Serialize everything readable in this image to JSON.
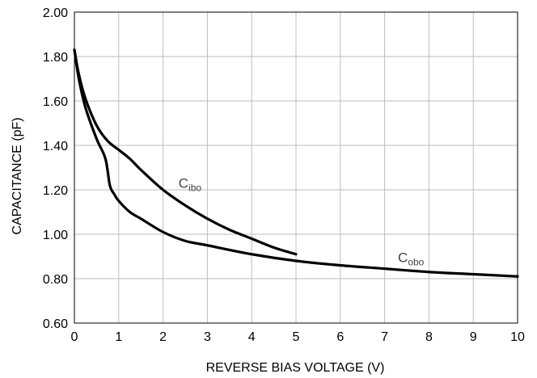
{
  "chart_data": {
    "type": "line",
    "xlabel": "REVERSE BIAS VOLTAGE (V)",
    "ylabel": "CAPACITANCE (pF)",
    "xlim": [
      0,
      10
    ],
    "ylim": [
      0.6,
      2.0
    ],
    "grid": true,
    "x_ticks": [
      "0",
      "1",
      "2",
      "3",
      "4",
      "5",
      "6",
      "7",
      "8",
      "9",
      "10"
    ],
    "y_ticks": [
      "0.60",
      "0.80",
      "1.00",
      "1.20",
      "1.40",
      "1.60",
      "1.80",
      "2.00"
    ],
    "series": [
      {
        "name": "Cibo",
        "label_main": "C",
        "label_sub": "ibo",
        "label_anchor": [
          2.35,
          1.21
        ],
        "x": [
          0,
          0.1,
          0.25,
          0.5,
          0.75,
          1.0,
          1.25,
          1.5,
          2.0,
          2.5,
          3.0,
          3.5,
          4.0,
          4.5,
          5.0
        ],
        "values": [
          1.83,
          1.72,
          1.61,
          1.49,
          1.42,
          1.38,
          1.34,
          1.29,
          1.2,
          1.13,
          1.07,
          1.02,
          0.98,
          0.94,
          0.91
        ]
      },
      {
        "name": "Cobo",
        "label_main": "C",
        "label_sub": "obo",
        "label_anchor": [
          7.3,
          0.875
        ],
        "x": [
          0,
          0.1,
          0.25,
          0.5,
          0.7,
          0.8,
          0.9,
          1.0,
          1.25,
          1.5,
          2.0,
          2.5,
          3.0,
          4.0,
          5.0,
          6.0,
          7.0,
          8.0,
          9.0,
          10.0
        ],
        "values": [
          1.83,
          1.7,
          1.57,
          1.43,
          1.34,
          1.22,
          1.18,
          1.15,
          1.1,
          1.07,
          1.01,
          0.97,
          0.95,
          0.91,
          0.88,
          0.86,
          0.845,
          0.83,
          0.82,
          0.81
        ]
      }
    ]
  }
}
